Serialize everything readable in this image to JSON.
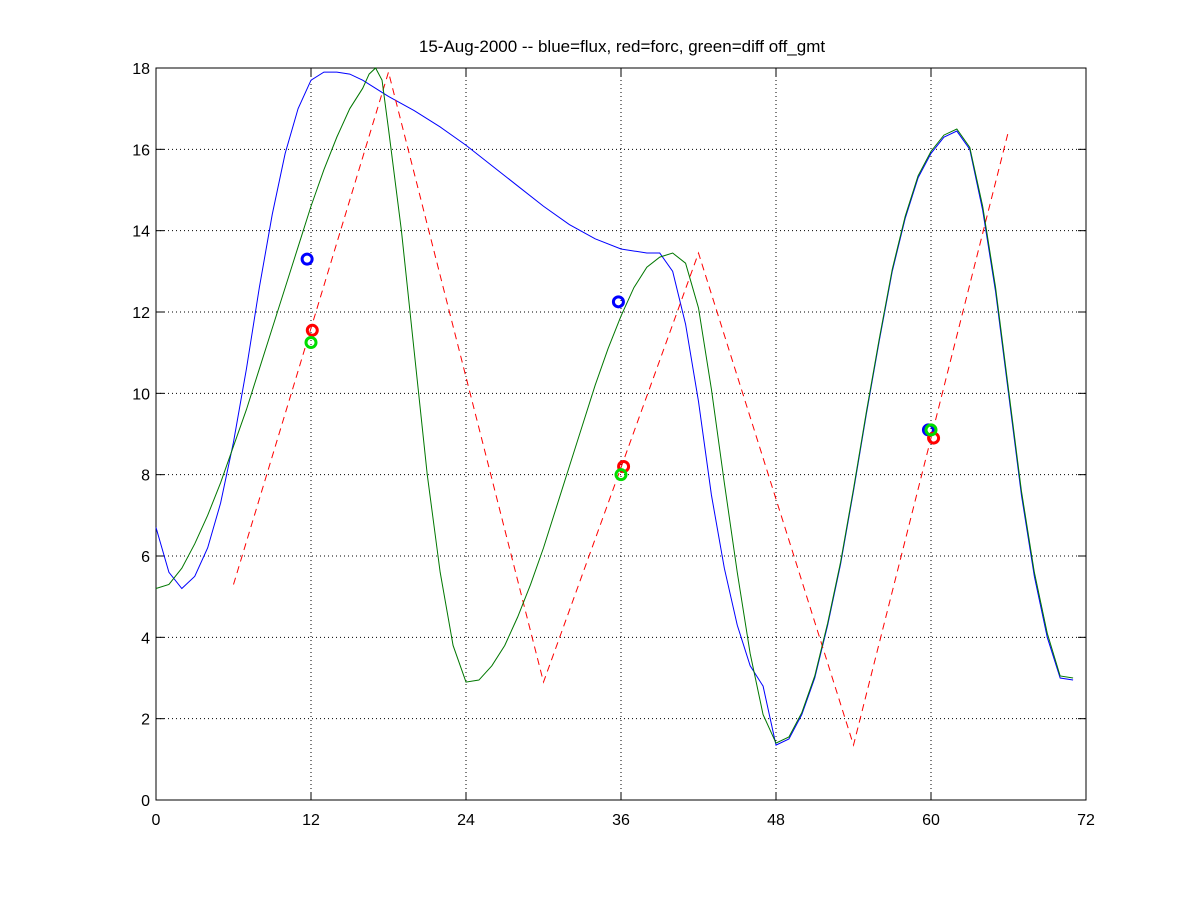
{
  "chart_data": {
    "type": "line",
    "title": "15-Aug-2000 -- blue=flux, red=forc, green=diff off_gmt",
    "xlabel": "",
    "ylabel": "",
    "xlim": [
      0,
      72
    ],
    "ylim": [
      0,
      18
    ],
    "xticks": [
      0,
      12,
      24,
      36,
      48,
      60,
      72
    ],
    "yticks": [
      0,
      2,
      4,
      6,
      8,
      10,
      12,
      14,
      16,
      18
    ],
    "grid": true,
    "series": [
      {
        "color": "#0000ff",
        "style": "solid",
        "x": [
          0,
          1,
          2,
          3,
          4,
          5,
          6,
          7,
          8,
          9,
          10,
          11,
          12,
          13,
          14,
          15,
          16,
          17,
          18,
          20,
          22,
          24,
          26,
          28,
          30,
          32,
          34,
          36,
          38,
          39,
          40,
          41,
          42,
          43,
          44,
          45,
          46,
          47,
          48,
          49,
          50,
          51,
          52,
          53,
          54,
          55,
          56,
          57,
          58,
          59,
          60,
          61,
          62,
          63,
          64,
          65,
          66,
          67,
          68,
          69,
          70,
          71
        ],
        "y": [
          6.7,
          5.6,
          5.2,
          5.5,
          6.2,
          7.3,
          8.8,
          10.6,
          12.6,
          14.4,
          15.9,
          17.0,
          17.7,
          17.9,
          17.9,
          17.85,
          17.7,
          17.5,
          17.3,
          16.95,
          16.55,
          16.1,
          15.6,
          15.1,
          14.6,
          14.15,
          13.8,
          13.55,
          13.45,
          13.45,
          13.0,
          11.7,
          9.8,
          7.5,
          5.7,
          4.3,
          3.3,
          2.8,
          1.35,
          1.5,
          2.1,
          3.0,
          4.3,
          5.8,
          7.6,
          9.5,
          11.3,
          13.0,
          14.3,
          15.3,
          15.9,
          16.3,
          16.45,
          16.0,
          14.5,
          12.5,
          10.0,
          7.5,
          5.5,
          4.0,
          3.0,
          2.95
        ]
      },
      {
        "color": "#ff0000",
        "style": "dashed",
        "x": [
          6,
          18,
          30,
          42,
          54,
          66
        ],
        "y": [
          5.3,
          17.9,
          2.9,
          13.45,
          1.35,
          16.45
        ]
      },
      {
        "color": "#007700",
        "style": "solid",
        "x": [
          0,
          1,
          2,
          3,
          4,
          5,
          6,
          7,
          8,
          9,
          10,
          11,
          12,
          13,
          14,
          15,
          16,
          16.5,
          17,
          17.5,
          18,
          19,
          20,
          21,
          22,
          23,
          24,
          25,
          26,
          27,
          28,
          29,
          30,
          31,
          32,
          33,
          34,
          35,
          36,
          37,
          38,
          39,
          40,
          41,
          42,
          43,
          44,
          45,
          46,
          47,
          48,
          49,
          50,
          51,
          52,
          53,
          54,
          55,
          56,
          57,
          58,
          59,
          60,
          61,
          62,
          63,
          64,
          65,
          66,
          67,
          68,
          69,
          70,
          71
        ],
        "y": [
          5.2,
          5.3,
          5.7,
          6.3,
          7.0,
          7.8,
          8.7,
          9.6,
          10.6,
          11.6,
          12.6,
          13.6,
          14.6,
          15.5,
          16.3,
          17.0,
          17.5,
          17.85,
          18.0,
          17.7,
          16.5,
          14.0,
          11.0,
          8.0,
          5.6,
          3.8,
          2.9,
          2.95,
          3.3,
          3.8,
          4.5,
          5.3,
          6.2,
          7.2,
          8.2,
          9.2,
          10.2,
          11.1,
          11.9,
          12.6,
          13.1,
          13.35,
          13.45,
          13.2,
          12.1,
          10.1,
          7.8,
          5.6,
          3.6,
          2.1,
          1.4,
          1.55,
          2.15,
          3.05,
          4.35,
          5.85,
          7.65,
          9.55,
          11.35,
          13.05,
          14.35,
          15.35,
          15.95,
          16.35,
          16.5,
          16.05,
          14.6,
          12.6,
          10.1,
          7.6,
          5.6,
          4.1,
          3.05,
          3.0
        ]
      }
    ],
    "markers": [
      {
        "x": 11.7,
        "y": 13.3,
        "color": "#0000ff"
      },
      {
        "x": 12.1,
        "y": 11.55,
        "color": "#ff0000"
      },
      {
        "x": 12.0,
        "y": 11.25,
        "color": "#00dd00"
      },
      {
        "x": 35.8,
        "y": 12.25,
        "color": "#0000ff"
      },
      {
        "x": 36.2,
        "y": 8.2,
        "color": "#ff0000"
      },
      {
        "x": 36.0,
        "y": 8.0,
        "color": "#00dd00"
      },
      {
        "x": 59.8,
        "y": 9.1,
        "color": "#0000ff"
      },
      {
        "x": 60.2,
        "y": 8.9,
        "color": "#ff0000"
      },
      {
        "x": 60.0,
        "y": 9.1,
        "color": "#00dd00"
      }
    ]
  }
}
